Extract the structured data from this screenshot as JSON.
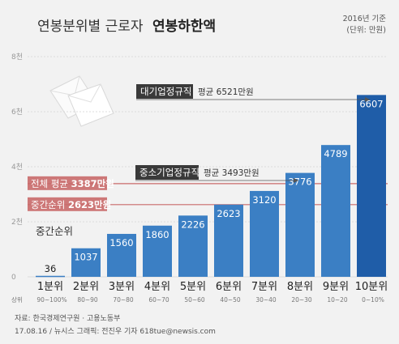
{
  "header": {
    "title_light": "연봉분위별 근로자",
    "title_bold": "연봉하한액",
    "basis": "2016년 기준",
    "unit": "(단위: 만원)"
  },
  "chart_data": {
    "type": "bar",
    "title": "연봉분위별 근로자 연봉하한액",
    "ylabel": "",
    "xlabel": "",
    "y_ticks": [
      "0",
      "2천",
      "4천",
      "6천",
      "8천"
    ],
    "ylim": [
      0,
      8000
    ],
    "grid": true,
    "categories": [
      "1분위",
      "2분위",
      "3분위",
      "4분위",
      "5분위",
      "6분위",
      "7분위",
      "8분위",
      "9분위",
      "10분위"
    ],
    "values": [
      36,
      1037,
      1560,
      1860,
      2226,
      2623,
      3120,
      3776,
      4789,
      6607
    ],
    "value_labels": [
      "36",
      "1037",
      "1560",
      "1860",
      "2226",
      "2623",
      "3120",
      "3776",
      "4789",
      "6607"
    ],
    "range_prefix": "상위",
    "ranges": [
      "90~100%",
      "80~90",
      "70~80",
      "60~70",
      "50~60",
      "40~50",
      "30~40",
      "20~30",
      "10~20",
      "0~10%"
    ],
    "reference_lines": [
      {
        "prefix": "전체 평균",
        "value_text": "3387만원",
        "value": 3387
      },
      {
        "prefix": "중간순위",
        "value_text": "2623만원",
        "value": 2623
      }
    ],
    "callouts": [
      {
        "box": "대기업정규직",
        "text": "평균 6521만원",
        "value": 6521
      },
      {
        "box": "중소기업정규직",
        "text": "평균 3493만원",
        "value": 3493
      }
    ],
    "median_label": "중간순위"
  },
  "colors": {
    "bar_light": "#3b7fc4",
    "bar_dark": "#1f5da8",
    "ref_line": "#c96a6a",
    "callout_box": "#3a3a3a",
    "background": "#f2f2f2"
  },
  "source": {
    "line1": "자료: 한국경제연구원 · 고용노동부",
    "line2": "17.08.16 / 뉴시스 그래픽: 전진우 기자 618tue@newsis.com"
  }
}
